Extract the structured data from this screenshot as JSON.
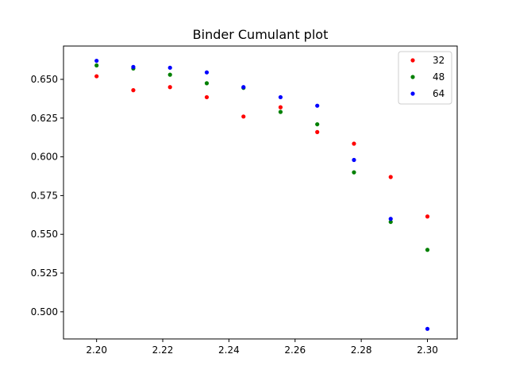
{
  "chart_data": {
    "type": "scatter",
    "title": "Binder Cumulant plot",
    "xlabel": "",
    "ylabel": "",
    "x": [
      2.2,
      2.2111,
      2.2222,
      2.2333,
      2.2444,
      2.2556,
      2.2667,
      2.2778,
      2.2889,
      2.3
    ],
    "xlim": [
      2.19,
      2.309
    ],
    "ylim": [
      0.4825,
      0.6715
    ],
    "x_ticks": [
      "2.20",
      "2.22",
      "2.24",
      "2.26",
      "2.28",
      "2.30"
    ],
    "x_tick_values": [
      2.2,
      2.22,
      2.24,
      2.26,
      2.28,
      2.3
    ],
    "y_ticks": [
      "0.500",
      "0.525",
      "0.550",
      "0.575",
      "0.600",
      "0.625",
      "0.650"
    ],
    "y_tick_values": [
      0.5,
      0.525,
      0.55,
      0.575,
      0.6,
      0.625,
      0.65
    ],
    "grid": false,
    "legend_position": "top-right",
    "series": [
      {
        "name": "32",
        "color": "#ff0000",
        "values": [
          0.652,
          0.643,
          0.645,
          0.6385,
          0.626,
          0.632,
          0.616,
          0.6085,
          0.587,
          0.5615
        ]
      },
      {
        "name": "48",
        "color": "#008000",
        "values": [
          0.659,
          0.657,
          0.653,
          0.6475,
          0.6445,
          0.629,
          0.621,
          0.59,
          0.558,
          0.54
        ]
      },
      {
        "name": "64",
        "color": "#0000ff",
        "values": [
          0.662,
          0.658,
          0.6575,
          0.6545,
          0.645,
          0.6385,
          0.633,
          0.598,
          0.56,
          0.489
        ]
      }
    ]
  }
}
